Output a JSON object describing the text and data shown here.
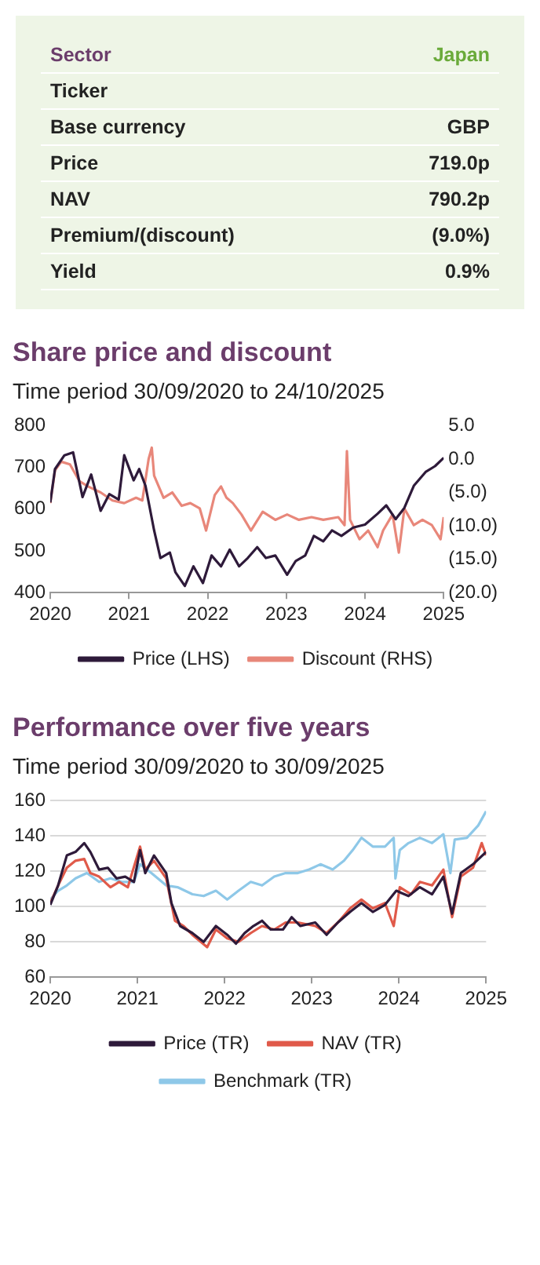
{
  "chart_data": [
    {
      "type": "other",
      "categories": [
        "Sector",
        "Ticker",
        "Base currency",
        "Price",
        "NAV",
        "Premium/(discount)",
        "Yield"
      ],
      "value_labels": [
        "Japan",
        null,
        "GBP",
        "719.0p",
        "790.2p",
        "(9.0%)",
        "0.9%"
      ]
    },
    {
      "type": "line",
      "title": "Share price and discount",
      "subtitle": "Time period 30/09/2020 to 24/10/2025",
      "xlim": [
        2020,
        2025
      ],
      "xticks": [
        2020,
        2021,
        2022,
        2023,
        2024,
        2025
      ],
      "ylim": [
        400,
        800
      ],
      "yticks": [
        400,
        500,
        600,
        700,
        800
      ],
      "y2lim": [
        -20,
        5
      ],
      "y2ticks": [
        {
          "value": -20,
          "label": "(20.0)"
        },
        {
          "value": -15,
          "label": "(15.0)"
        },
        {
          "value": -10,
          "label": "(10.0)"
        },
        {
          "value": -5,
          "label": "(5.0)"
        },
        {
          "value": 0,
          "label": "0.0"
        },
        {
          "value": 5,
          "label": "5.0"
        }
      ],
      "grid": false,
      "legend": "bottom",
      "marker": "none",
      "line_style": "solid",
      "series": [
        {
          "name": "Price (LHS)",
          "color": "#2e1a3a",
          "x": [
            2020.0,
            2020.06,
            2020.18,
            2020.29,
            2020.41,
            2020.52,
            2020.64,
            2020.75,
            2020.87,
            2020.94,
            2021.06,
            2021.13,
            2021.21,
            2021.32,
            2021.4,
            2021.52,
            2021.59,
            2021.71,
            2021.82,
            2021.94,
            2022.05,
            2022.17,
            2022.28,
            2022.4,
            2022.51,
            2022.63,
            2022.74,
            2022.86,
            2023.01,
            2023.12,
            2023.24,
            2023.35,
            2023.47,
            2023.58,
            2023.7,
            2023.85,
            2024.0,
            2024.16,
            2024.27,
            2024.39,
            2024.5,
            2024.62,
            2024.77,
            2024.89,
            2025.0
          ],
          "values": [
            616,
            696,
            729,
            736,
            629,
            683,
            596,
            636,
            623,
            729,
            669,
            696,
            656,
            549,
            483,
            496,
            449,
            416,
            463,
            423,
            489,
            463,
            503,
            463,
            483,
            509,
            483,
            489,
            443,
            476,
            489,
            536,
            523,
            549,
            536,
            556,
            563,
            589,
            609,
            576,
            603,
            656,
            689,
            703,
            723
          ]
        },
        {
          "name": "Discount (RHS)",
          "color": "#e8877a",
          "axis": "y2",
          "x": [
            2020.0,
            2020.06,
            2020.14,
            2020.25,
            2020.37,
            2020.48,
            2020.64,
            2020.79,
            2020.94,
            2021.09,
            2021.17,
            2021.25,
            2021.29,
            2021.32,
            2021.44,
            2021.55,
            2021.67,
            2021.78,
            2021.9,
            2021.98,
            2022.09,
            2022.17,
            2022.24,
            2022.32,
            2022.43,
            2022.55,
            2022.7,
            2022.86,
            2023.01,
            2023.16,
            2023.32,
            2023.47,
            2023.66,
            2023.74,
            2023.77,
            2023.81,
            2023.93,
            2024.04,
            2024.16,
            2024.23,
            2024.35,
            2024.43,
            2024.5,
            2024.62,
            2024.73,
            2024.85,
            2024.96,
            2025.0
          ],
          "values": [
            -6.6,
            -1.7,
            -0.4,
            -0.8,
            -3.3,
            -4.1,
            -5.0,
            -6.2,
            -6.6,
            -5.8,
            -6.2,
            0,
            1.7,
            -2.5,
            -5.8,
            -5.0,
            -7.0,
            -6.6,
            -7.4,
            -10.7,
            -5.4,
            -4.1,
            -5.8,
            -6.6,
            -8.3,
            -10.7,
            -7.9,
            -9.1,
            -8.3,
            -9.1,
            -8.7,
            -9.1,
            -8.7,
            -9.9,
            1.2,
            -9.1,
            -12.0,
            -10.7,
            -13.2,
            -10.7,
            -8.3,
            -14.0,
            -7.4,
            -9.9,
            -9.1,
            -9.9,
            -12.0,
            -8.7
          ]
        }
      ]
    },
    {
      "type": "line",
      "title": "Performance over five years",
      "subtitle": "Time period 30/09/2020 to 30/09/2025",
      "xlim": [
        2020,
        2025
      ],
      "xticks": [
        2020,
        2021,
        2022,
        2023,
        2024,
        2025
      ],
      "ylim": [
        60,
        160
      ],
      "yticks": [
        60,
        80,
        100,
        120,
        140,
        160
      ],
      "grid": "y",
      "legend": "bottom",
      "marker": "none",
      "line_style": "solid",
      "series": [
        {
          "name": "Price (TR)",
          "color": "#2e1a3a",
          "x": [
            2020.0,
            2020.09,
            2020.19,
            2020.29,
            2020.39,
            2020.46,
            2020.56,
            2020.66,
            2020.76,
            2020.86,
            2020.96,
            2021.03,
            2021.09,
            2021.19,
            2021.33,
            2021.39,
            2021.49,
            2021.63,
            2021.76,
            2021.9,
            2022.03,
            2022.13,
            2022.23,
            2022.33,
            2022.43,
            2022.53,
            2022.67,
            2022.77,
            2022.87,
            2023.04,
            2023.17,
            2023.3,
            2023.44,
            2023.57,
            2023.7,
            2023.84,
            2023.97,
            2024.11,
            2024.24,
            2024.38,
            2024.51,
            2024.61,
            2024.71,
            2024.85,
            2025.0
          ],
          "values": [
            101,
            112,
            129,
            131,
            136,
            131,
            121,
            122,
            116,
            117,
            114,
            132,
            119,
            129,
            119,
            102,
            89,
            85,
            80,
            89,
            84,
            79,
            85,
            89,
            92,
            87,
            87,
            94,
            89,
            91,
            84,
            91,
            97,
            102,
            97,
            101,
            109,
            106,
            111,
            107,
            117,
            96,
            119,
            124,
            131
          ]
        },
        {
          "name": "NAV (TR)",
          "color": "#e05a4a",
          "x": [
            2020.0,
            2020.09,
            2020.19,
            2020.29,
            2020.39,
            2020.46,
            2020.56,
            2020.69,
            2020.79,
            2020.89,
            2021.03,
            2021.09,
            2021.19,
            2021.33,
            2021.43,
            2021.53,
            2021.63,
            2021.8,
            2021.9,
            2022.03,
            2022.16,
            2022.3,
            2022.43,
            2022.57,
            2022.7,
            2022.84,
            2023.04,
            2023.17,
            2023.3,
            2023.44,
            2023.57,
            2023.7,
            2023.84,
            2023.94,
            2024.01,
            2024.14,
            2024.24,
            2024.38,
            2024.51,
            2024.61,
            2024.71,
            2024.85,
            2024.95,
            2025.0
          ],
          "values": [
            102,
            112,
            122,
            126,
            127,
            119,
            117,
            111,
            114,
            111,
            134,
            121,
            126,
            116,
            92,
            89,
            84,
            77,
            87,
            82,
            80,
            85,
            89,
            87,
            91,
            91,
            89,
            85,
            91,
            99,
            104,
            99,
            102,
            89,
            111,
            107,
            114,
            112,
            121,
            94,
            117,
            122,
            136,
            129
          ]
        },
        {
          "name": "Benchmark (TR)",
          "color": "#8ec8e8",
          "x": [
            2020.0,
            2020.09,
            2020.19,
            2020.29,
            2020.42,
            2020.56,
            2020.69,
            2020.82,
            2020.96,
            2021.03,
            2021.16,
            2021.33,
            2021.46,
            2021.63,
            2021.76,
            2021.9,
            2022.03,
            2022.16,
            2022.3,
            2022.43,
            2022.57,
            2022.7,
            2022.84,
            2022.97,
            2023.1,
            2023.24,
            2023.37,
            2023.47,
            2023.57,
            2023.7,
            2023.84,
            2023.94,
            2023.96,
            2024.01,
            2024.11,
            2024.24,
            2024.38,
            2024.51,
            2024.59,
            2024.64,
            2024.78,
            2024.91,
            2025.0
          ],
          "values": [
            104,
            109,
            112,
            116,
            119,
            114,
            116,
            114,
            114,
            124,
            119,
            112,
            111,
            107,
            106,
            109,
            104,
            109,
            114,
            112,
            117,
            119,
            119,
            121,
            124,
            121,
            126,
            132,
            139,
            134,
            134,
            139,
            116,
            132,
            136,
            139,
            136,
            141,
            119,
            138,
            139,
            146,
            154
          ]
        }
      ]
    }
  ]
}
